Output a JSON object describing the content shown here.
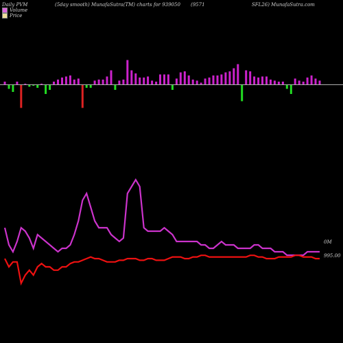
{
  "header": {
    "left": "Daily PVM",
    "middle": "(5day smooth) MunafaSutra(TM) charts for 939050",
    "right_a": "(9571",
    "right_b": "SFL26) MunafaSutra.com"
  },
  "legend": {
    "volume": "Volume",
    "price": "Price"
  },
  "colors": {
    "background": "#000000",
    "baseline": "#b0b0b0",
    "volume_up": "#cc22cc",
    "volume_down": "#22dd22",
    "volume_spike": "#dd2222",
    "volume_line": "#cc33cc",
    "price_line": "#ee1111",
    "volume_swatch": "#dd66dd",
    "price_swatch": "#eedd99"
  },
  "chart_data": {
    "type": "bar",
    "title": "",
    "volume_bars": [
      {
        "dir": "up",
        "mag": 3
      },
      {
        "dir": "down",
        "mag": 4
      },
      {
        "dir": "down",
        "mag": 7
      },
      {
        "dir": "up",
        "mag": 3
      },
      {
        "dir": "spike",
        "mag": 13
      },
      {
        "dir": "up",
        "mag": 1
      },
      {
        "dir": "down",
        "mag": 2
      },
      {
        "dir": "down",
        "mag": 1
      },
      {
        "dir": "down",
        "mag": 3
      },
      {
        "dir": "up",
        "mag": 1
      },
      {
        "dir": "down",
        "mag": 9
      },
      {
        "dir": "down",
        "mag": 5
      },
      {
        "dir": "up",
        "mag": 3
      },
      {
        "dir": "up",
        "mag": 5
      },
      {
        "dir": "up",
        "mag": 7
      },
      {
        "dir": "up",
        "mag": 8
      },
      {
        "dir": "up",
        "mag": 9
      },
      {
        "dir": "up",
        "mag": 5
      },
      {
        "dir": "up",
        "mag": 6
      },
      {
        "dir": "spike",
        "mag": 13
      },
      {
        "dir": "down",
        "mag": 3
      },
      {
        "dir": "down",
        "mag": 3
      },
      {
        "dir": "up",
        "mag": 4
      },
      {
        "dir": "up",
        "mag": 5
      },
      {
        "dir": "up",
        "mag": 5
      },
      {
        "dir": "up",
        "mag": 8
      },
      {
        "dir": "up",
        "mag": 14
      },
      {
        "dir": "down",
        "mag": 5
      },
      {
        "dir": "up",
        "mag": 4
      },
      {
        "dir": "up",
        "mag": 5
      },
      {
        "dir": "up",
        "mag": 24
      },
      {
        "dir": "up",
        "mag": 14
      },
      {
        "dir": "up",
        "mag": 11
      },
      {
        "dir": "up",
        "mag": 7
      },
      {
        "dir": "up",
        "mag": 7
      },
      {
        "dir": "up",
        "mag": 8
      },
      {
        "dir": "up",
        "mag": 4
      },
      {
        "dir": "up",
        "mag": 3
      },
      {
        "dir": "up",
        "mag": 10
      },
      {
        "dir": "up",
        "mag": 10
      },
      {
        "dir": "up",
        "mag": 10
      },
      {
        "dir": "down",
        "mag": 5
      },
      {
        "dir": "up",
        "mag": 6
      },
      {
        "dir": "up",
        "mag": 12
      },
      {
        "dir": "up",
        "mag": 13
      },
      {
        "dir": "up",
        "mag": 9
      },
      {
        "dir": "up",
        "mag": 5
      },
      {
        "dir": "up",
        "mag": 4
      },
      {
        "dir": "up",
        "mag": 2
      },
      {
        "dir": "up",
        "mag": 6
      },
      {
        "dir": "up",
        "mag": 7
      },
      {
        "dir": "up",
        "mag": 9
      },
      {
        "dir": "up",
        "mag": 9
      },
      {
        "dir": "up",
        "mag": 10
      },
      {
        "dir": "up",
        "mag": 12
      },
      {
        "dir": "up",
        "mag": 13
      },
      {
        "dir": "up",
        "mag": 16
      },
      {
        "dir": "up",
        "mag": 20
      },
      {
        "dir": "down",
        "mag": 16
      },
      {
        "dir": "up",
        "mag": 14
      },
      {
        "dir": "up",
        "mag": 13
      },
      {
        "dir": "up",
        "mag": 8
      },
      {
        "dir": "up",
        "mag": 7
      },
      {
        "dir": "up",
        "mag": 8
      },
      {
        "dir": "up",
        "mag": 8
      },
      {
        "dir": "up",
        "mag": 5
      },
      {
        "dir": "up",
        "mag": 4
      },
      {
        "dir": "up",
        "mag": 3
      },
      {
        "dir": "up",
        "mag": 3
      },
      {
        "dir": "down",
        "mag": 4
      },
      {
        "dir": "down",
        "mag": 9
      },
      {
        "dir": "up",
        "mag": 6
      },
      {
        "dir": "up",
        "mag": 4
      },
      {
        "dir": "up",
        "mag": 3
      },
      {
        "dir": "up",
        "mag": 7
      },
      {
        "dir": "up",
        "mag": 9
      },
      {
        "dir": "up",
        "mag": 6
      },
      {
        "dir": "up",
        "mag": 4
      }
    ],
    "volume_line": [
      12,
      7,
      5,
      8,
      12,
      11,
      9,
      6,
      10,
      9,
      8,
      7,
      6,
      5,
      6,
      6,
      7,
      10,
      14,
      20,
      22,
      18,
      14,
      12,
      12,
      12,
      10,
      9,
      8,
      9,
      22,
      24,
      26,
      24,
      12,
      11,
      11,
      11,
      11,
      12,
      11,
      10,
      8,
      8,
      8,
      8,
      8,
      8,
      7,
      7,
      6,
      6,
      7,
      8,
      7,
      7,
      7,
      6,
      6,
      6,
      6,
      7,
      7,
      6,
      6,
      6,
      5,
      5,
      5,
      4,
      4,
      4,
      4,
      4,
      5,
      5,
      5,
      5
    ],
    "price_line": [
      995,
      990,
      993,
      993,
      980,
      985,
      988,
      985,
      990,
      992,
      990,
      990,
      988,
      988,
      990,
      990,
      992,
      993,
      993,
      994,
      995,
      996,
      995,
      995,
      994,
      993,
      993,
      993,
      994,
      994,
      995,
      995,
      995,
      994,
      994,
      995,
      995,
      994,
      994,
      994,
      995,
      996,
      996,
      996,
      995,
      995,
      996,
      996,
      997,
      997,
      996,
      996,
      996,
      996,
      996,
      996,
      996,
      996,
      996,
      996,
      997,
      997,
      996,
      996,
      995,
      995,
      995,
      996,
      996,
      996,
      996,
      997,
      997,
      996,
      996,
      996,
      995,
      995
    ],
    "labels": {
      "volume_last": "0M",
      "price_last": "995.00"
    }
  }
}
